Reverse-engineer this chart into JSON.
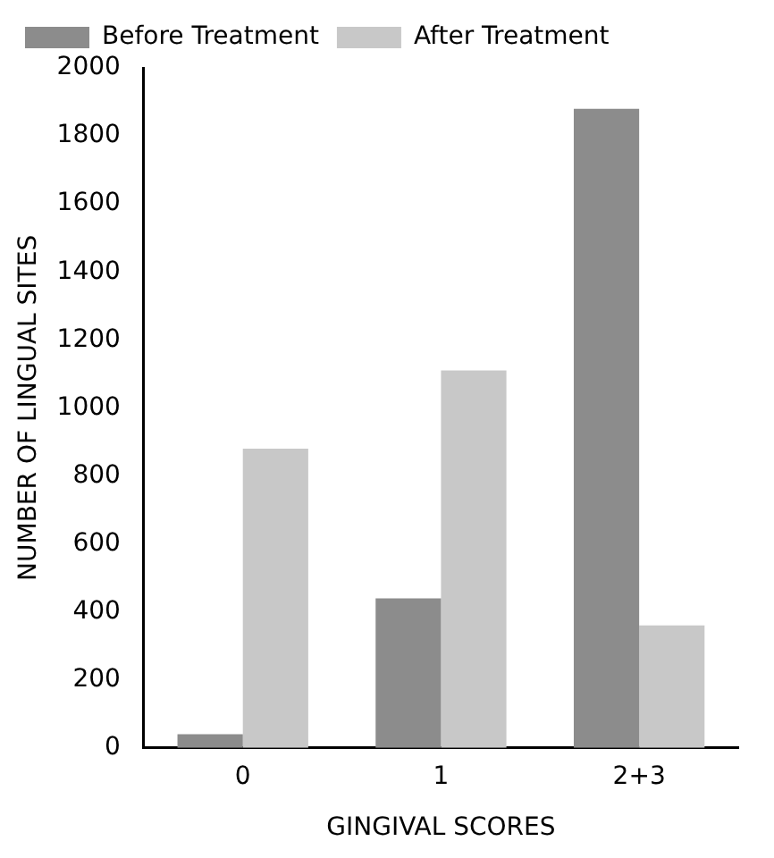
{
  "chart_data": {
    "type": "bar",
    "xlabel": "GINGIVAL SCORES",
    "ylabel": "NUMBER OF LINGUAL SITES",
    "categories": [
      "0",
      "1",
      "2+3"
    ],
    "series": [
      {
        "name": "Before Treatment",
        "color": "#8c8c8c",
        "values": [
          40,
          440,
          1880
        ]
      },
      {
        "name": "After Treatment",
        "color": "#c8c8c8",
        "values": [
          880,
          1110,
          360
        ]
      }
    ],
    "ylim": [
      0,
      2000
    ],
    "yticks": [
      0,
      200,
      400,
      600,
      800,
      1000,
      1200,
      1400,
      1600,
      1800,
      2000
    ],
    "grid": false,
    "legend": "top left"
  }
}
